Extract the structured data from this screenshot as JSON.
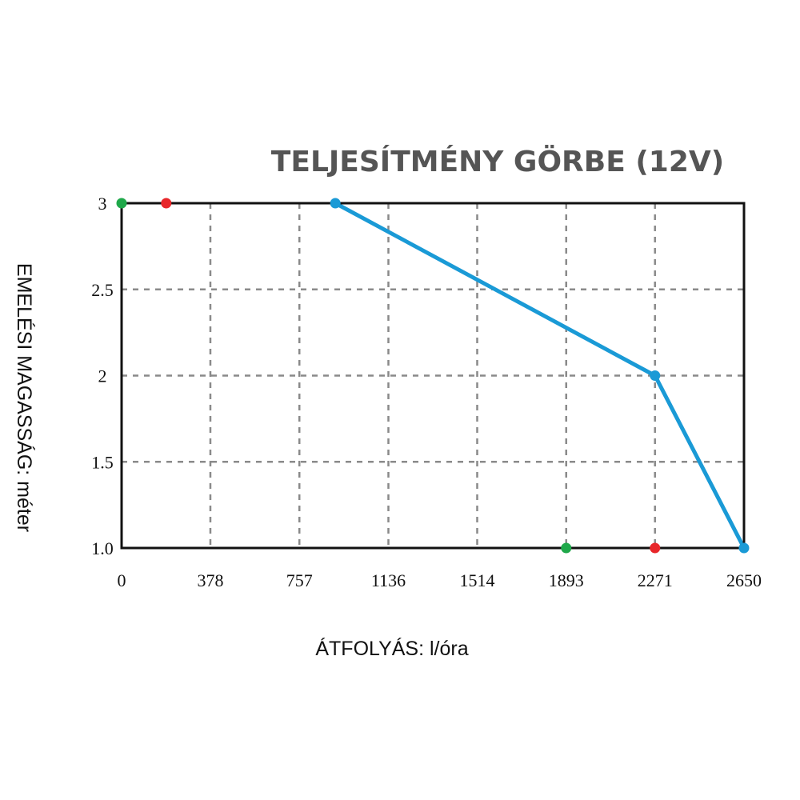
{
  "chart_data": {
    "type": "line",
    "title": "TELJESÍTMÉNY GÖRBE (12V)",
    "xlabel": "ÁTFOLYÁS: l/óra",
    "ylabel": "EMELÉSI MAGASSÁG: méter",
    "xlim": [
      0,
      2650
    ],
    "ylim": [
      1.0,
      3
    ],
    "x_ticks": [
      0,
      378,
      757,
      1136,
      1514,
      1893,
      2271,
      2650
    ],
    "x_tick_labels": [
      "0",
      "378",
      "757",
      "1136",
      "1514",
      "1893",
      "2271",
      "2650"
    ],
    "y_ticks": [
      1.0,
      1.5,
      2,
      2.5,
      3
    ],
    "y_tick_labels": [
      "1.0",
      "1.5",
      "2",
      "2.5",
      "3"
    ],
    "grid": true,
    "series": [
      {
        "color": "#1a9ad6",
        "x": [
          910,
          2271,
          2650
        ],
        "y": [
          3,
          2,
          1.0
        ]
      }
    ],
    "markers": [
      {
        "x": 0,
        "y": 3,
        "color": "#1fa84a"
      },
      {
        "x": 190,
        "y": 3,
        "color": "#e8262a"
      },
      {
        "x": 1893,
        "y": 1.0,
        "color": "#1fa84a"
      },
      {
        "x": 2271,
        "y": 1.0,
        "color": "#e8262a"
      }
    ]
  }
}
